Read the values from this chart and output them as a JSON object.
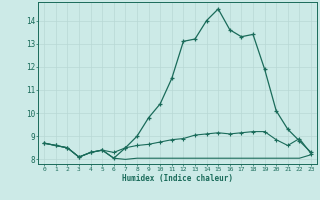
{
  "xlabel": "Humidex (Indice chaleur)",
  "background_color": "#cceae7",
  "grid_major_color": "#b8d8d5",
  "grid_minor_color": "#d8eeec",
  "line_color": "#1a6b5a",
  "xlim": [
    -0.5,
    23.5
  ],
  "ylim": [
    7.8,
    14.8
  ],
  "yticks": [
    8,
    9,
    10,
    11,
    12,
    13,
    14
  ],
  "xticks": [
    0,
    1,
    2,
    3,
    4,
    5,
    6,
    7,
    8,
    9,
    10,
    11,
    12,
    13,
    14,
    15,
    16,
    17,
    18,
    19,
    20,
    21,
    22,
    23
  ],
  "line1_x": [
    0,
    1,
    2,
    3,
    4,
    5,
    6,
    7,
    8,
    9,
    10,
    11,
    12,
    13,
    14,
    15,
    16,
    17,
    18,
    19,
    20,
    21,
    22,
    23
  ],
  "line1_y": [
    8.7,
    8.6,
    8.5,
    8.1,
    8.3,
    8.4,
    8.05,
    8.0,
    8.05,
    8.05,
    8.05,
    8.05,
    8.05,
    8.05,
    8.05,
    8.05,
    8.05,
    8.05,
    8.05,
    8.05,
    8.05,
    8.05,
    8.05,
    8.2
  ],
  "line2_x": [
    0,
    1,
    2,
    3,
    4,
    5,
    6,
    7,
    8,
    9,
    10,
    11,
    12,
    13,
    14,
    15,
    16,
    17,
    18,
    19,
    20,
    21,
    22,
    23
  ],
  "line2_y": [
    8.7,
    8.6,
    8.5,
    8.1,
    8.3,
    8.4,
    8.3,
    8.5,
    8.6,
    8.65,
    8.75,
    8.85,
    8.9,
    9.05,
    9.1,
    9.15,
    9.1,
    9.15,
    9.2,
    9.2,
    8.85,
    8.6,
    8.9,
    8.25
  ],
  "line3_x": [
    0,
    1,
    2,
    3,
    4,
    5,
    6,
    7,
    8,
    9,
    10,
    11,
    12,
    13,
    14,
    15,
    16,
    17,
    18,
    19,
    20,
    21,
    22,
    23
  ],
  "line3_y": [
    8.7,
    8.6,
    8.5,
    8.1,
    8.3,
    8.4,
    8.05,
    8.5,
    9.0,
    9.8,
    10.4,
    11.5,
    13.1,
    13.2,
    14.0,
    14.5,
    13.6,
    13.3,
    13.4,
    11.9,
    10.1,
    9.3,
    8.8,
    8.3
  ]
}
